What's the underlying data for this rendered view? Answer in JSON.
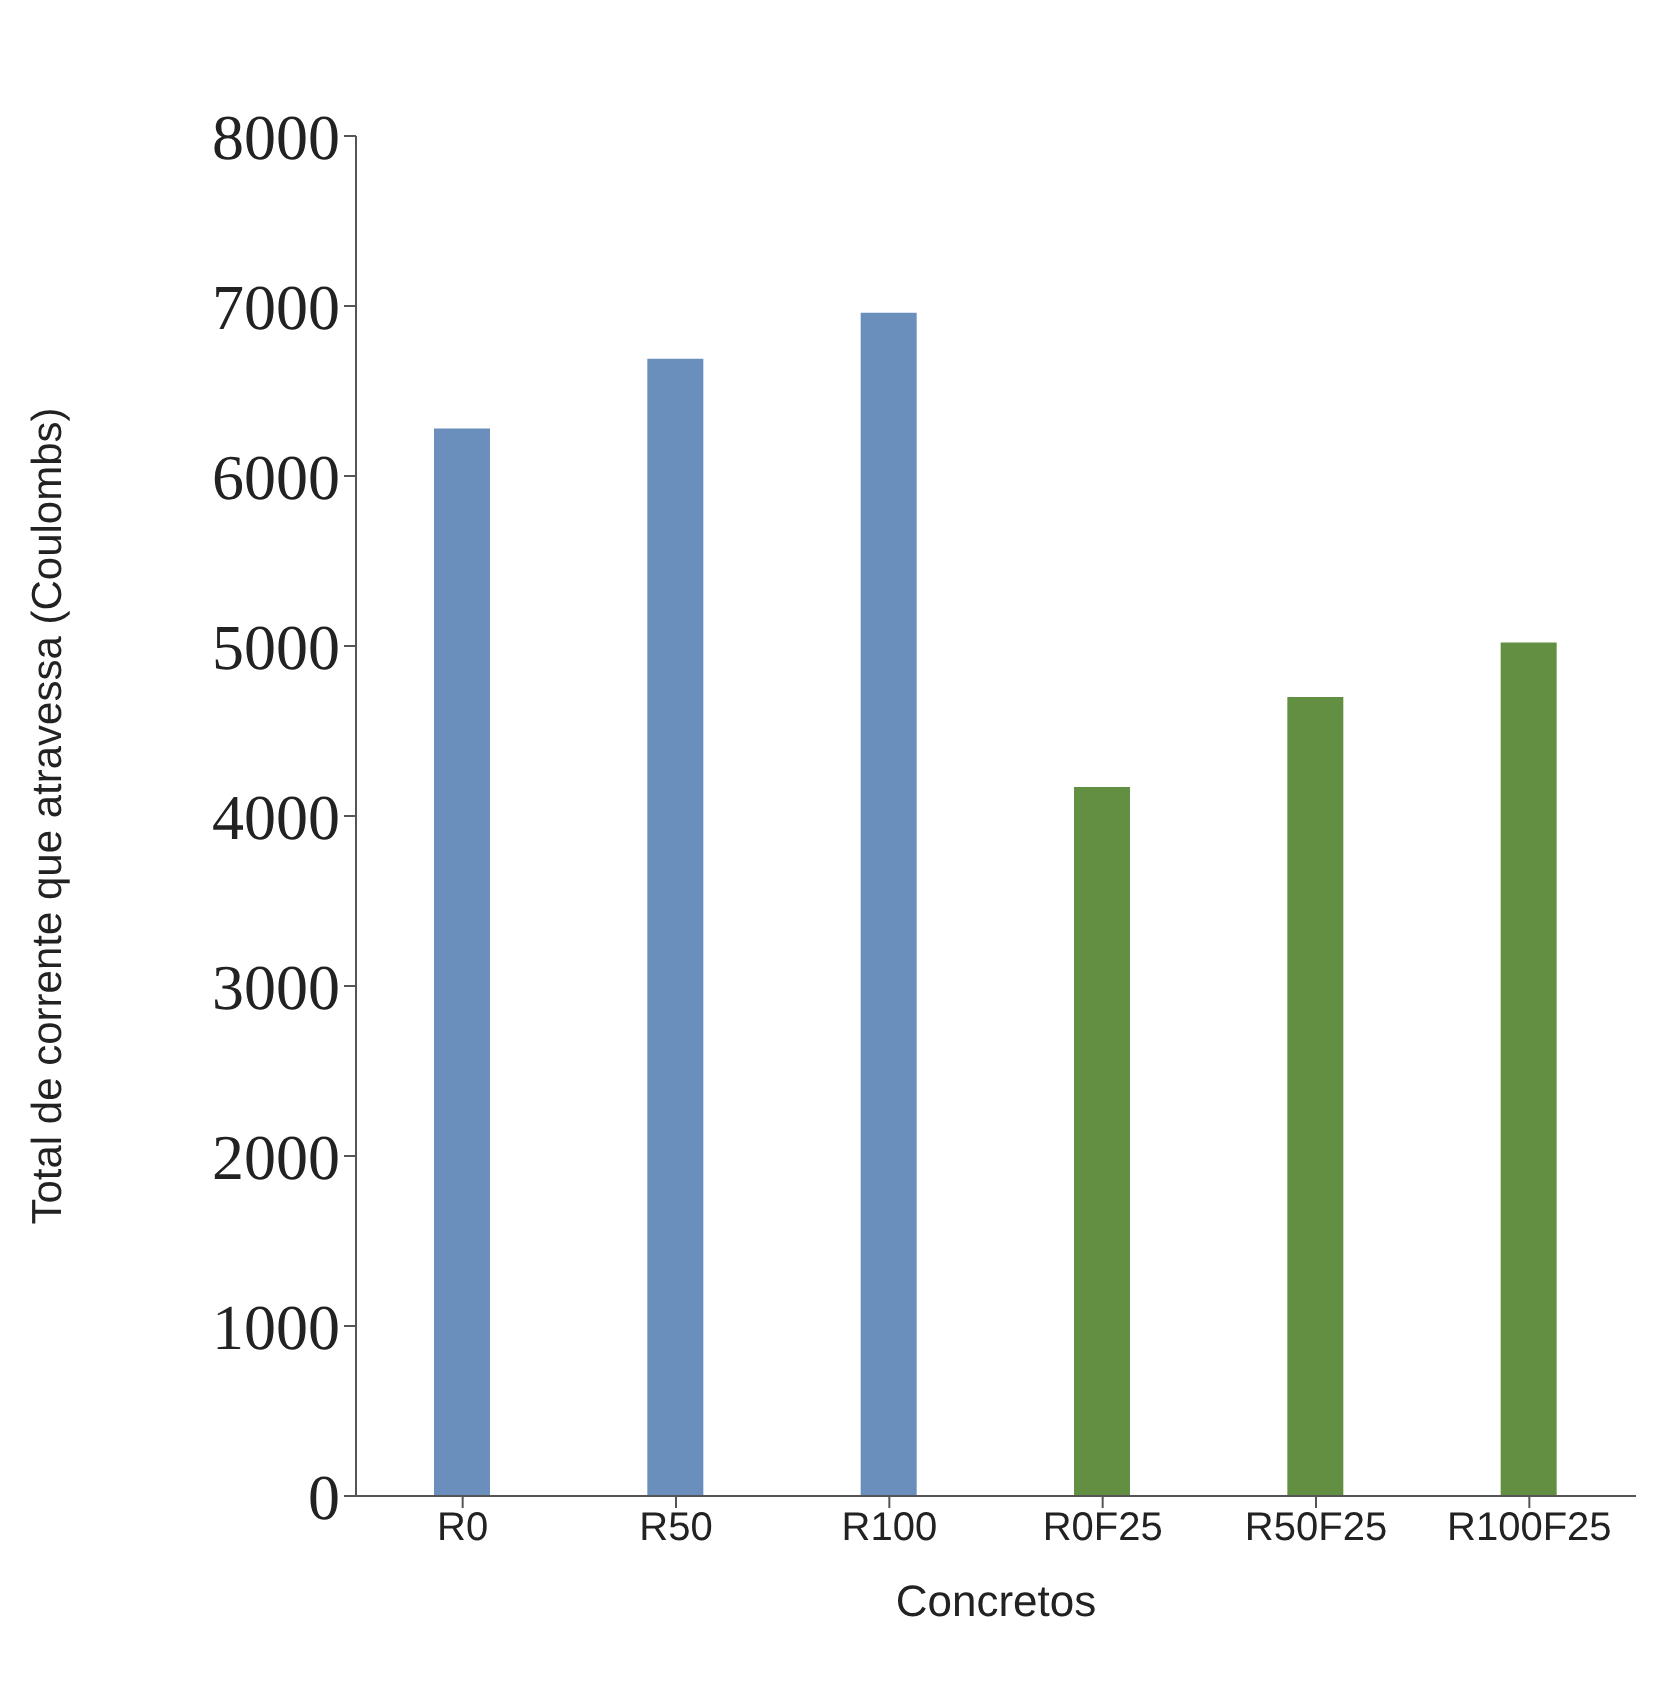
{
  "chart_data": {
    "type": "bar",
    "xlabel": "Concretos",
    "ylabel": "Total de corrente que atravessa (Coulombs)",
    "categories": [
      "R0",
      "R50",
      "R100",
      "R0F25",
      "R50F25",
      "R100F25"
    ],
    "values": [
      6280,
      6690,
      6960,
      4170,
      4700,
      5020
    ],
    "colors": [
      "#6a8fbd",
      "#6a8fbd",
      "#6a8fbd",
      "#638f42",
      "#638f42",
      "#638f42"
    ],
    "ylim": [
      0,
      8000
    ],
    "yticks": [
      0,
      1000,
      2000,
      3000,
      4000,
      5000,
      6000,
      7000,
      8000
    ],
    "grid": false
  }
}
